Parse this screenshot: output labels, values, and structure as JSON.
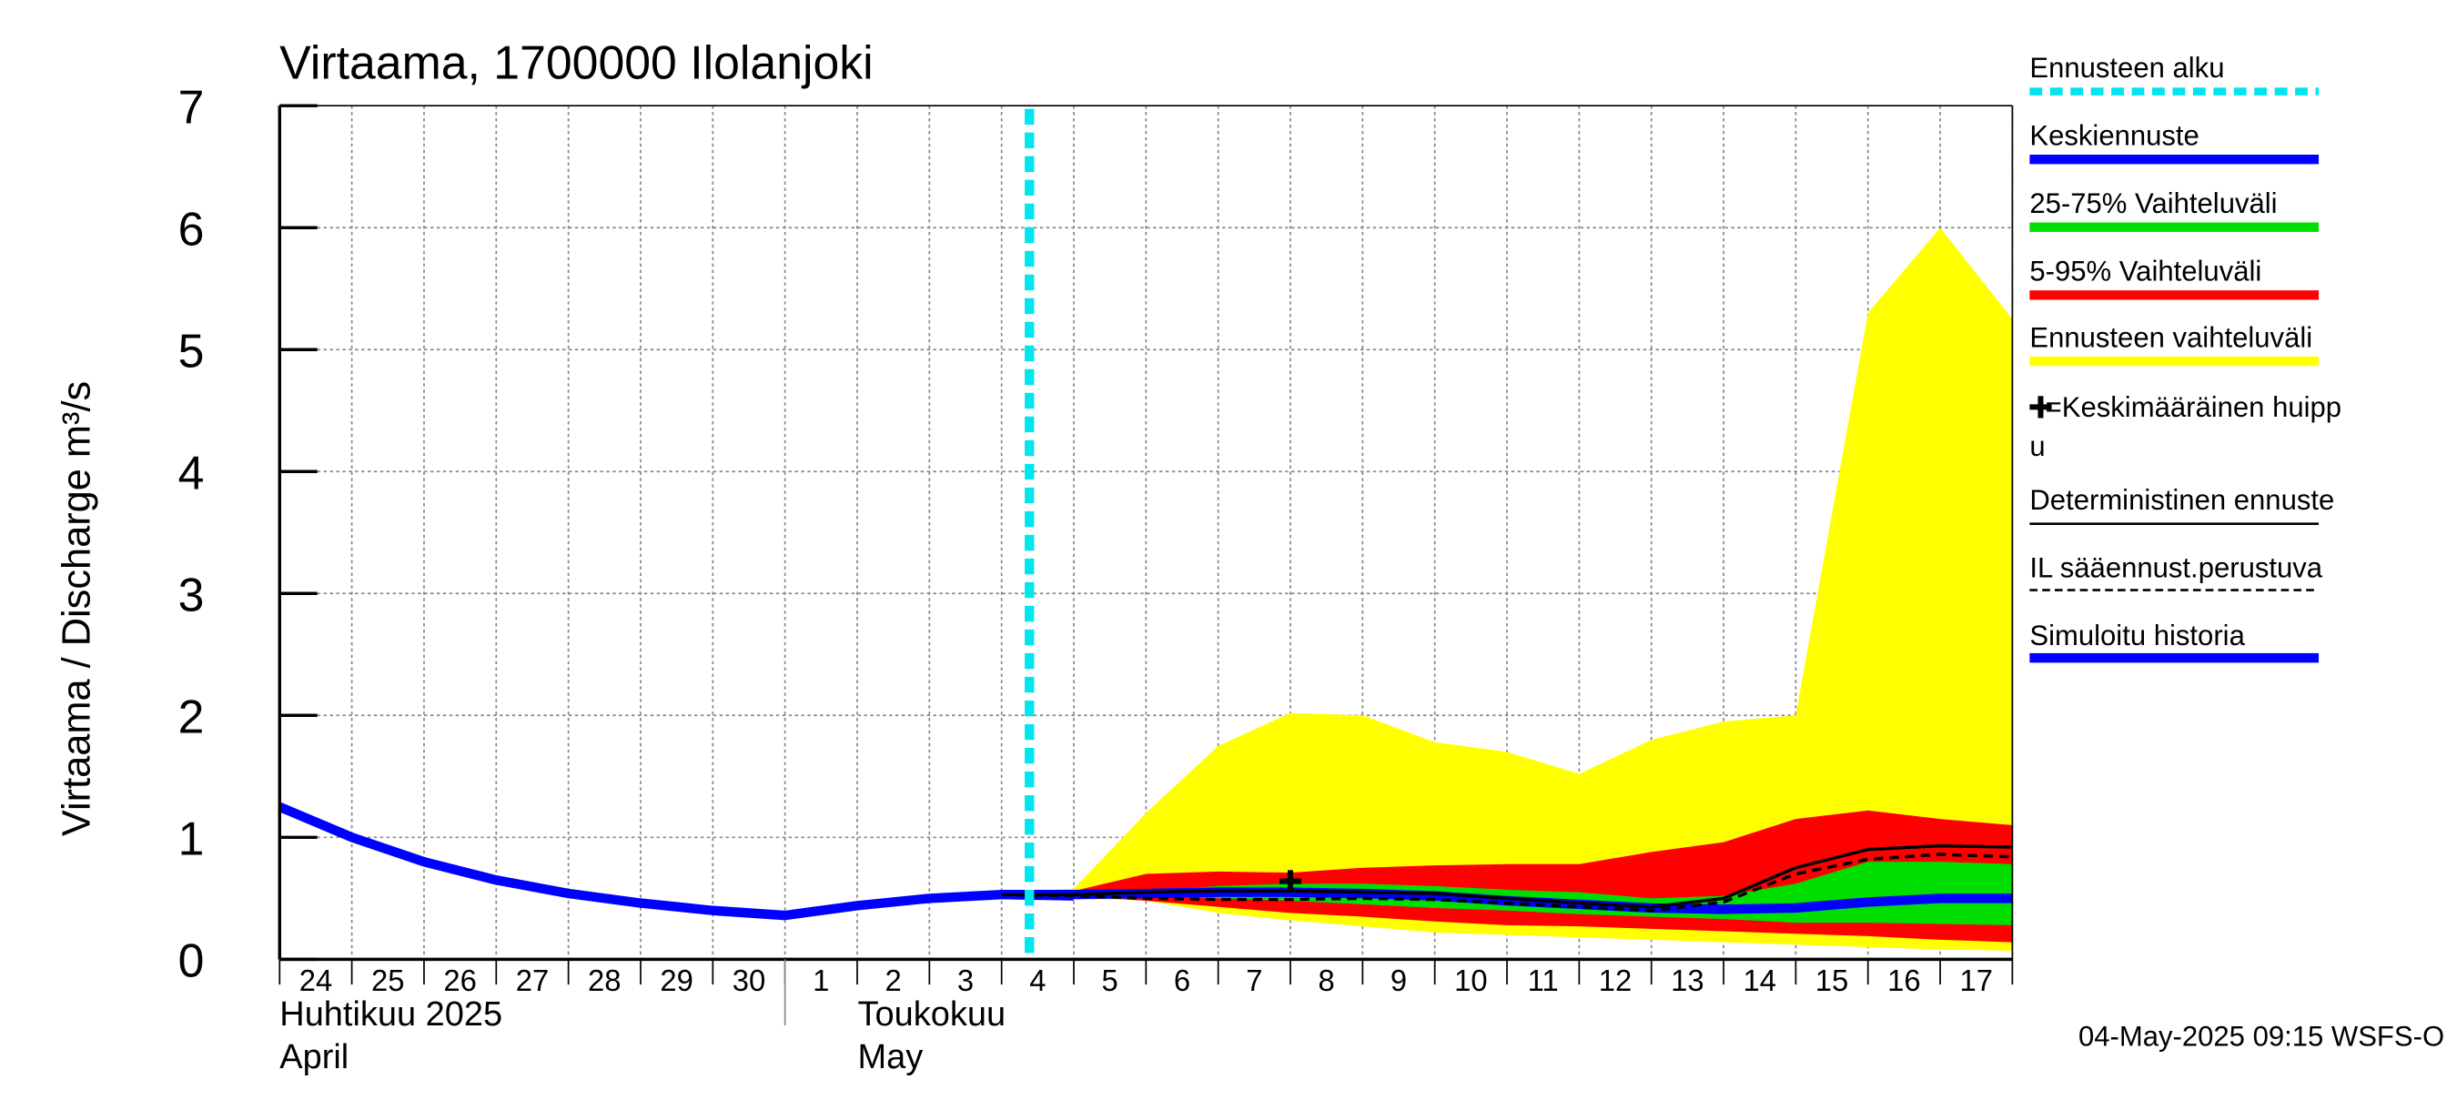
{
  "chart_data": {
    "type": "area",
    "title": "Virtaama, 1700000 Ilolanjoki",
    "ylabel": "Virtaama / Discharge    m³/s",
    "ylim": [
      0,
      7
    ],
    "yticks": [
      "0",
      "1",
      "2",
      "3",
      "4",
      "5",
      "6",
      "7"
    ],
    "xlim": [
      "2025-04-24",
      "2025-05-17T24:00"
    ],
    "x_day_labels": [
      "24",
      "25",
      "26",
      "27",
      "28",
      "29",
      "30",
      "1",
      "2",
      "3",
      "4",
      "5",
      "6",
      "7",
      "8",
      "9",
      "10",
      "11",
      "12",
      "13",
      "14",
      "15",
      "16",
      "17"
    ],
    "month_labels": [
      {
        "line1": "Huhtikuu  2025",
        "line2": "April"
      },
      {
        "line1": "Toukokuu",
        "line2": "May"
      }
    ],
    "grid": true,
    "forecast_start": "2025-05-04T09:15",
    "series": [
      {
        "name": "Simuloitu historia",
        "color": "#0000ff",
        "x": [
          "2025-04-24",
          "2025-04-25",
          "2025-04-26",
          "2025-04-27",
          "2025-04-28",
          "2025-04-29",
          "2025-04-30",
          "2025-05-01",
          "2025-05-02",
          "2025-05-03",
          "2025-05-04",
          "2025-05-05"
        ],
        "values": [
          1.25,
          1.0,
          0.8,
          0.65,
          0.54,
          0.46,
          0.4,
          0.36,
          0.44,
          0.5,
          0.53,
          0.52
        ]
      },
      {
        "name": "Ennusteen vaihteluväli",
        "color": "#ffff00",
        "x": [
          "2025-05-04",
          "2025-05-05",
          "2025-05-06",
          "2025-05-07",
          "2025-05-08",
          "2025-05-09",
          "2025-05-10",
          "2025-05-11",
          "2025-05-12",
          "2025-05-13",
          "2025-05-14",
          "2025-05-15",
          "2025-05-16",
          "2025-05-17",
          "2025-05-17T24:00"
        ],
        "upper": [
          0.55,
          0.58,
          1.2,
          1.75,
          2.02,
          2.0,
          1.78,
          1.7,
          1.52,
          1.8,
          1.95,
          2.0,
          5.3,
          6.0,
          5.25
        ],
        "lower": [
          0.52,
          0.5,
          0.48,
          0.38,
          0.32,
          0.27,
          0.22,
          0.2,
          0.18,
          0.16,
          0.14,
          0.12,
          0.1,
          0.08,
          0.07
        ]
      },
      {
        "name": "5-95% Vaihteluväli",
        "color": "#ff0000",
        "x": [
          "2025-05-04",
          "2025-05-05",
          "2025-05-06",
          "2025-05-07",
          "2025-05-08",
          "2025-05-09",
          "2025-05-10",
          "2025-05-11",
          "2025-05-12",
          "2025-05-13",
          "2025-05-14",
          "2025-05-15",
          "2025-05-16",
          "2025-05-17",
          "2025-05-17T24:00"
        ],
        "upper": [
          0.55,
          0.56,
          0.7,
          0.72,
          0.71,
          0.75,
          0.77,
          0.78,
          0.78,
          0.88,
          0.96,
          1.15,
          1.22,
          1.15,
          1.1
        ],
        "lower": [
          0.53,
          0.52,
          0.48,
          0.43,
          0.38,
          0.35,
          0.31,
          0.28,
          0.27,
          0.25,
          0.23,
          0.21,
          0.19,
          0.16,
          0.14
        ]
      },
      {
        "name": "25-75% Vaihteluväli",
        "color": "#00dd00",
        "x": [
          "2025-05-04",
          "2025-05-05",
          "2025-05-06",
          "2025-05-07",
          "2025-05-08",
          "2025-05-09",
          "2025-05-10",
          "2025-05-11",
          "2025-05-12",
          "2025-05-13",
          "2025-05-14",
          "2025-05-15",
          "2025-05-16",
          "2025-05-17",
          "2025-05-17T24:00"
        ],
        "upper": [
          0.54,
          0.54,
          0.56,
          0.6,
          0.62,
          0.62,
          0.6,
          0.57,
          0.55,
          0.5,
          0.52,
          0.62,
          0.8,
          0.8,
          0.78
        ],
        "lower": [
          0.53,
          0.53,
          0.52,
          0.5,
          0.48,
          0.45,
          0.42,
          0.4,
          0.37,
          0.35,
          0.33,
          0.3,
          0.3,
          0.29,
          0.28
        ]
      },
      {
        "name": "Keskiennuste",
        "color": "#0000ff",
        "x": [
          "2025-05-04",
          "2025-05-05",
          "2025-05-06",
          "2025-05-07",
          "2025-05-08",
          "2025-05-09",
          "2025-05-10",
          "2025-05-11",
          "2025-05-12",
          "2025-05-13",
          "2025-05-14",
          "2025-05-15",
          "2025-05-16",
          "2025-05-17",
          "2025-05-17T24:00"
        ],
        "values": [
          0.53,
          0.53,
          0.54,
          0.55,
          0.55,
          0.54,
          0.52,
          0.48,
          0.45,
          0.42,
          0.41,
          0.42,
          0.47,
          0.5,
          0.5
        ]
      },
      {
        "name": "Deterministinen ennuste",
        "color": "#000000",
        "x": [
          "2025-05-04",
          "2025-05-05",
          "2025-05-06",
          "2025-05-07",
          "2025-05-08",
          "2025-05-09",
          "2025-05-10",
          "2025-05-11",
          "2025-05-12",
          "2025-05-13",
          "2025-05-14",
          "2025-05-15",
          "2025-05-16",
          "2025-05-17",
          "2025-05-17T24:00"
        ],
        "values": [
          0.53,
          0.53,
          0.55,
          0.56,
          0.56,
          0.55,
          0.54,
          0.5,
          0.46,
          0.43,
          0.5,
          0.75,
          0.9,
          0.93,
          0.92
        ]
      },
      {
        "name": "IL sääennust.perustuva",
        "color": "#000000",
        "x": [
          "2025-05-04",
          "2025-05-05",
          "2025-05-06",
          "2025-05-07",
          "2025-05-08",
          "2025-05-09",
          "2025-05-10",
          "2025-05-11",
          "2025-05-12",
          "2025-05-13",
          "2025-05-14",
          "2025-05-15",
          "2025-05-16",
          "2025-05-17",
          "2025-05-17T24:00"
        ],
        "values": [
          0.53,
          0.52,
          0.5,
          0.49,
          0.49,
          0.5,
          0.49,
          0.46,
          0.43,
          0.4,
          0.47,
          0.7,
          0.82,
          0.86,
          0.84
        ]
      }
    ],
    "mean_peak": {
      "label": "✚=Keskimääräinen huippu",
      "x": "2025-05-08",
      "y": 0.64
    }
  },
  "legend": {
    "items": [
      {
        "label": "Ennusteen alku",
        "color": "#00e5ee",
        "style": "dashed-thick"
      },
      {
        "label": "Keskiennuste",
        "color": "#0000ff",
        "style": "thick"
      },
      {
        "label": "25-75% Vaihteluväli",
        "color": "#00dd00",
        "style": "thick"
      },
      {
        "label": "5-95% Vaihteluväli",
        "color": "#ff0000",
        "style": "thick"
      },
      {
        "label": "Ennusteen vaihteluväli",
        "color": "#ffff00",
        "style": "thick"
      },
      {
        "label": "✚=Keskimääräinen huippu",
        "color": "#000000",
        "style": "none"
      },
      {
        "label": "Deterministinen ennuste",
        "color": "#000000",
        "style": "thin"
      },
      {
        "label": "IL sääennust.perustuva",
        "color": "#000000",
        "style": "dashed-thin"
      },
      {
        "label": "Simuloitu historia",
        "color": "#0000ff",
        "style": "thick"
      }
    ]
  },
  "timestamp": "04-May-2025 09:15 WSFS-O"
}
